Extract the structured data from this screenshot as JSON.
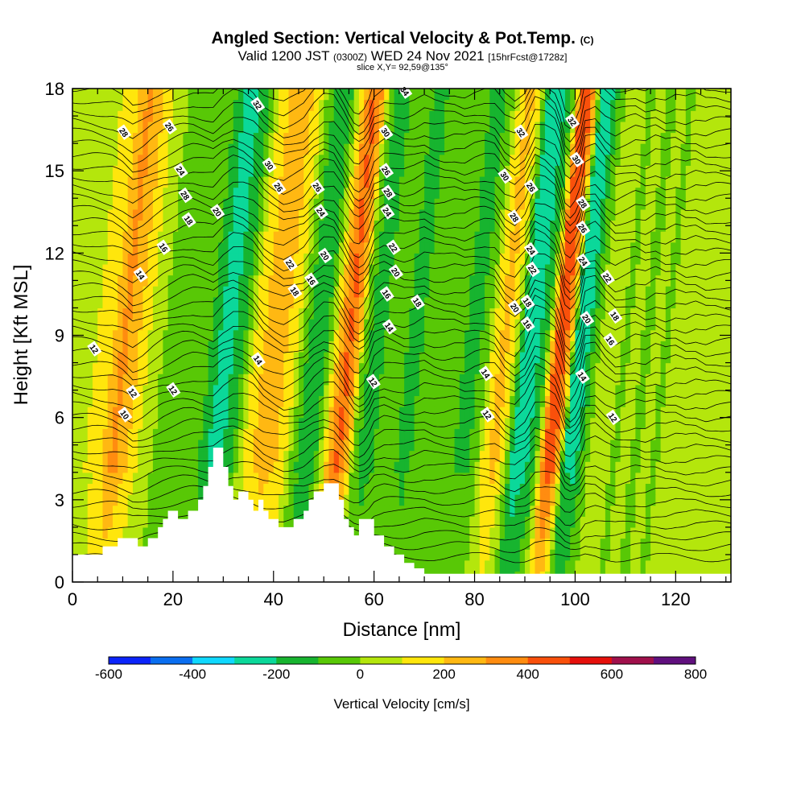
{
  "chart_data": {
    "type": "heatmap",
    "title": "Angled Section: Vertical Velocity & Pot.Temp.",
    "title_tag": "(C)",
    "subtitle_parts": [
      "Valid 1200 JST",
      "(0300Z)",
      "WED 24 Nov 2021",
      "[15hrFcst@1728z]"
    ],
    "slice_label": "slice X,Y= 92,59@135°",
    "xlabel": "Distance [nm]",
    "ylabel": "Height [Kft MSL]",
    "xlim": [
      0,
      131
    ],
    "ylim": [
      0,
      18
    ],
    "x_ticks": [
      0,
      20,
      40,
      60,
      80,
      100,
      120
    ],
    "y_ticks": [
      0,
      3,
      6,
      9,
      12,
      15,
      18
    ],
    "colorbar": {
      "title": "Vertical Velocity [cm/s]",
      "ticks": [
        -600,
        -400,
        -200,
        0,
        200,
        400,
        600,
        800
      ],
      "bins": [
        -600,
        -500,
        -400,
        -300,
        -200,
        -100,
        0,
        100,
        200,
        300,
        400,
        500,
        600,
        700,
        800
      ],
      "colors": [
        "#0b24fb",
        "#0a6ef0",
        "#10d8ff",
        "#0bd89a",
        "#17b42f",
        "#58c806",
        "#b4e60c",
        "#ffe60c",
        "#ffb812",
        "#ff8c10",
        "#f9500b",
        "#e6100b",
        "#a0104b",
        "#60107e"
      ]
    },
    "vertical_velocity_profile": {
      "note_units": "cm/s",
      "x": [
        0,
        4,
        8,
        10,
        12,
        14,
        16,
        18,
        20,
        22,
        24,
        26,
        28,
        30,
        32,
        34,
        36,
        38,
        40,
        42,
        44,
        46,
        48,
        50,
        52,
        54,
        55,
        56,
        57,
        58,
        59,
        60,
        62,
        64,
        66,
        68,
        70,
        72,
        74,
        76,
        78,
        80,
        82,
        84,
        86,
        88,
        90,
        92,
        94,
        96,
        97,
        98,
        99,
        100,
        101,
        102,
        104,
        106,
        108,
        110,
        112,
        114,
        116,
        118,
        120,
        122,
        124,
        126,
        128,
        131
      ],
      "w_upper": [
        40,
        60,
        120,
        200,
        330,
        260,
        150,
        60,
        0,
        -60,
        -80,
        -40,
        0,
        -150,
        -240,
        -200,
        -100,
        100,
        200,
        280,
        220,
        150,
        -50,
        -180,
        -150,
        100,
        250,
        380,
        420,
        350,
        200,
        -50,
        -150,
        -100,
        -50,
        -80,
        -150,
        -80,
        -60,
        -80,
        -40,
        -100,
        -120,
        -80,
        150,
        250,
        80,
        -300,
        -250,
        -120,
        100,
        420,
        500,
        400,
        200,
        -200,
        -250,
        -50,
        80,
        30,
        -20,
        40,
        -30,
        30,
        -20,
        40,
        0,
        60,
        30,
        40
      ]
    },
    "theta_contour_labels": [
      "10",
      "12",
      "14",
      "16",
      "18",
      "20",
      "22",
      "24",
      "26",
      "28",
      "30",
      "32",
      "34"
    ]
  }
}
